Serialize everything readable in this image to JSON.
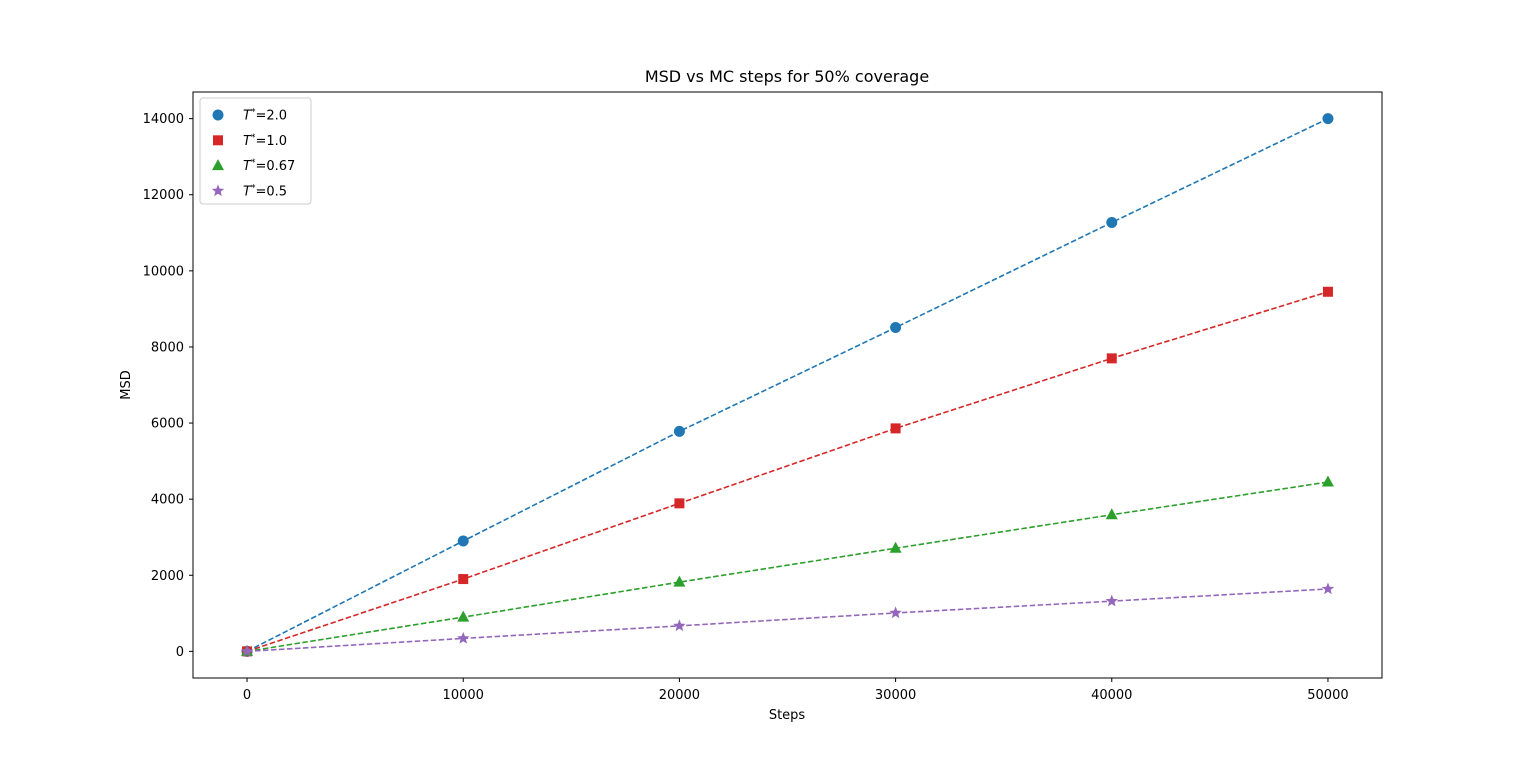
{
  "chart_data": {
    "type": "line",
    "title": "MSD vs MC steps for 50% coverage",
    "xlabel": "Steps",
    "ylabel": "MSD",
    "xlim": [
      -2500,
      52500
    ],
    "ylim": [
      -700,
      14700
    ],
    "xticks": [
      0,
      10000,
      20000,
      30000,
      40000,
      50000
    ],
    "yticks": [
      0,
      2000,
      4000,
      6000,
      8000,
      10000,
      12000,
      14000
    ],
    "grid": false,
    "legend_position": "top-left",
    "line_style": "dashed",
    "x": [
      0,
      10000,
      20000,
      30000,
      40000,
      50000
    ],
    "series": [
      {
        "name": "=2.0",
        "var": "T",
        "sup": "*",
        "marker": "circle",
        "color": "#1f77b4",
        "values": [
          0,
          2900,
          5780,
          8510,
          11270,
          14000
        ]
      },
      {
        "name": "=1.0",
        "var": "T",
        "sup": "*",
        "marker": "square",
        "color": "#d62728",
        "values": [
          0,
          1900,
          3890,
          5860,
          7700,
          9450
        ]
      },
      {
        "name": "=0.67",
        "var": "T",
        "sup": "*",
        "marker": "triangle",
        "color": "#2ca02c",
        "values": [
          0,
          900,
          1820,
          2710,
          3590,
          4450
        ]
      },
      {
        "name": "=0.5",
        "var": "T",
        "sup": "*",
        "marker": "star",
        "color": "#9467bd",
        "values": [
          0,
          340,
          670,
          1010,
          1320,
          1640
        ]
      }
    ]
  }
}
